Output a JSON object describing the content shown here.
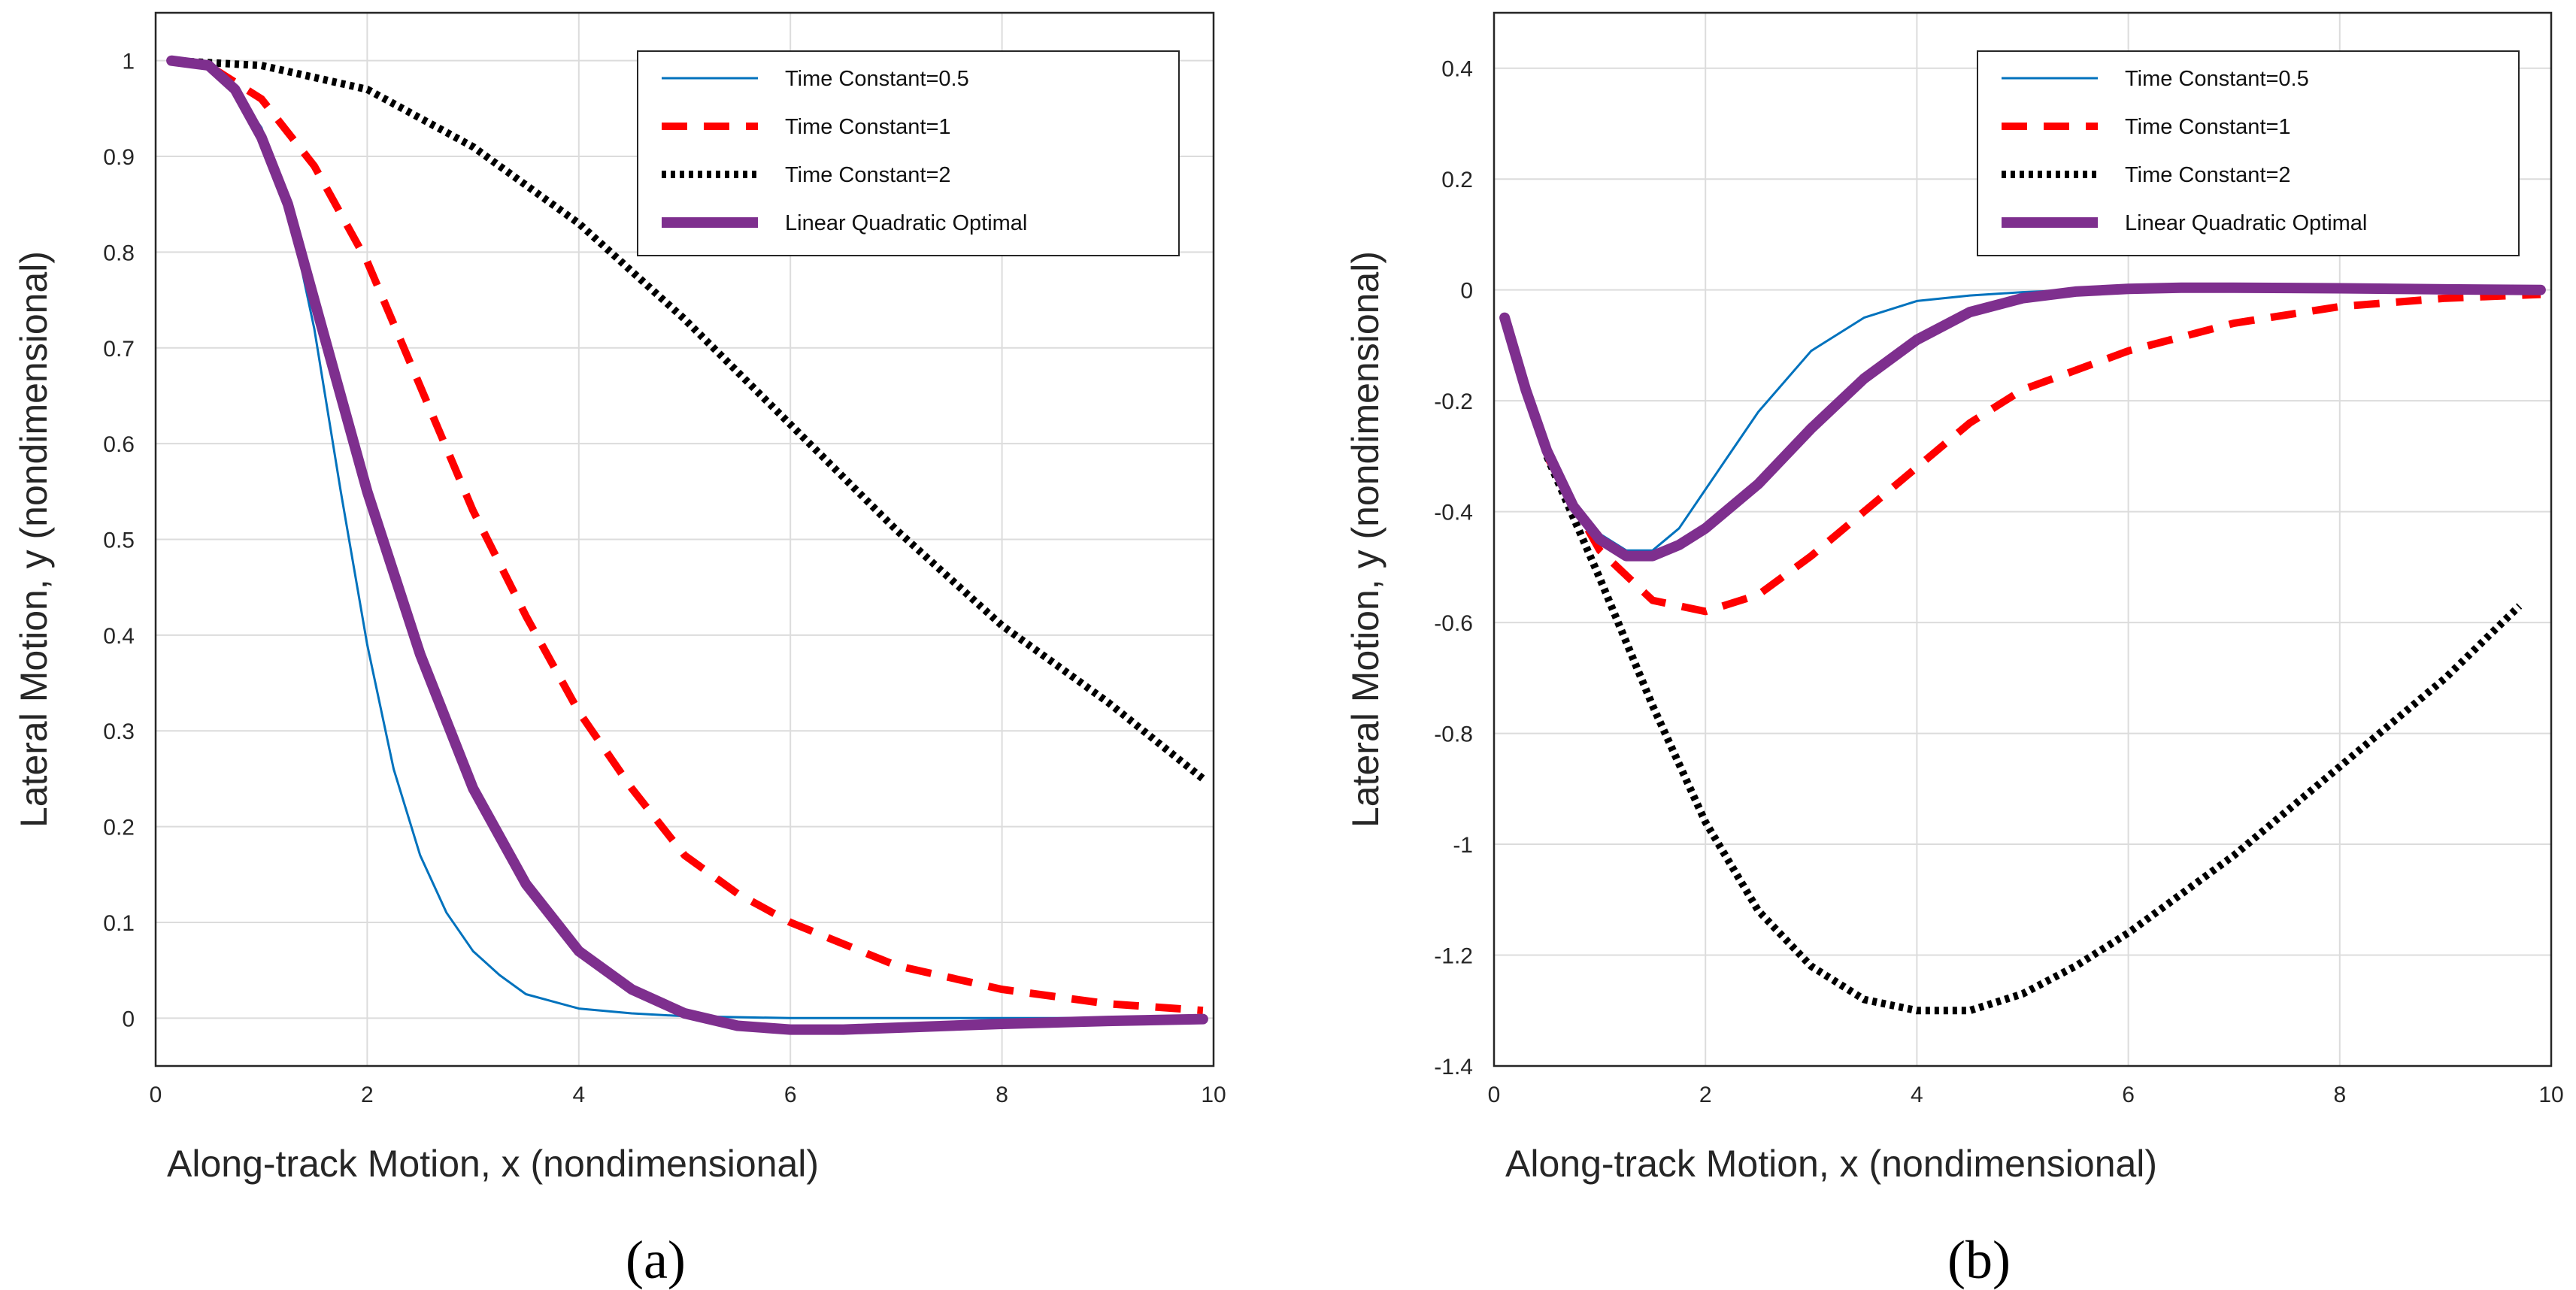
{
  "chart_data": [
    {
      "type": "line",
      "panel_label": "(a)",
      "xlabel": "Along-track Motion, x (nondimensional)",
      "ylabel": "Lateral Motion, y (nondimensional)",
      "xlim": [
        0,
        10
      ],
      "ylim": [
        -0.05,
        1.05
      ],
      "xticks": [
        "0",
        "2",
        "4",
        "6",
        "8",
        "10"
      ],
      "yticks": [
        "0",
        "0.1",
        "0.2",
        "0.3",
        "0.4",
        "0.5",
        "0.6",
        "0.7",
        "0.8",
        "0.9",
        "1"
      ],
      "grid": true,
      "legend_position": "top-right",
      "series": [
        {
          "name": "Time Constant=0.5",
          "color": "#0072BD",
          "style": "solid-thin",
          "x": [
            0.15,
            0.5,
            0.75,
            1.0,
            1.25,
            1.5,
            1.75,
            2.0,
            2.25,
            2.5,
            2.75,
            3.0,
            3.25,
            3.5,
            4.0,
            4.5,
            5.0,
            6.0,
            7.0,
            8.0,
            9.0,
            9.9
          ],
          "y": [
            1.0,
            0.995,
            0.97,
            0.93,
            0.85,
            0.72,
            0.55,
            0.39,
            0.26,
            0.17,
            0.11,
            0.07,
            0.045,
            0.025,
            0.01,
            0.005,
            0.002,
            0.0,
            0.0,
            0.0,
            0.0,
            0.0
          ]
        },
        {
          "name": "Time Constant=1",
          "color": "#FF0000",
          "style": "dashed",
          "x": [
            0.15,
            0.5,
            1.0,
            1.5,
            2.0,
            2.5,
            3.0,
            3.5,
            4.0,
            4.5,
            5.0,
            5.5,
            6.0,
            7.0,
            8.0,
            9.0,
            9.9
          ],
          "y": [
            1.0,
            0.995,
            0.96,
            0.89,
            0.79,
            0.66,
            0.53,
            0.42,
            0.32,
            0.24,
            0.17,
            0.13,
            0.1,
            0.055,
            0.03,
            0.015,
            0.008
          ]
        },
        {
          "name": "Time Constant=2",
          "color": "#000000",
          "style": "dotted",
          "x": [
            0.15,
            1.0,
            2.0,
            3.0,
            4.0,
            5.0,
            6.0,
            7.0,
            8.0,
            9.0,
            9.9
          ],
          "y": [
            1.0,
            0.995,
            0.97,
            0.91,
            0.83,
            0.73,
            0.62,
            0.51,
            0.41,
            0.33,
            0.25
          ]
        },
        {
          "name": "Linear Quadratic Optimal",
          "color": "#7E2F8E",
          "style": "solid-thick",
          "x": [
            0.15,
            0.5,
            0.75,
            1.0,
            1.25,
            1.5,
            1.75,
            2.0,
            2.5,
            3.0,
            3.5,
            4.0,
            4.5,
            5.0,
            5.5,
            6.0,
            6.5,
            7.0,
            8.0,
            9.0,
            9.9
          ],
          "y": [
            1.0,
            0.995,
            0.97,
            0.92,
            0.85,
            0.75,
            0.65,
            0.55,
            0.38,
            0.24,
            0.14,
            0.07,
            0.03,
            0.005,
            -0.008,
            -0.012,
            -0.012,
            -0.01,
            -0.006,
            -0.003,
            -0.001
          ]
        }
      ]
    },
    {
      "type": "line",
      "panel_label": "(b)",
      "xlabel": "Along-track Motion, x (nondimensional)",
      "ylabel": "Lateral Motion, y (nondimensional)",
      "xlim": [
        0,
        10
      ],
      "ylim": [
        -1.4,
        0.5
      ],
      "xticks": [
        "0",
        "2",
        "4",
        "6",
        "8",
        "10"
      ],
      "yticks": [
        "-1.4",
        "-1.2",
        "-1",
        "-0.8",
        "-0.6",
        "-0.4",
        "-0.2",
        "0",
        "0.2",
        "0.4"
      ],
      "grid": true,
      "legend_position": "top-right",
      "series": [
        {
          "name": "Time Constant=0.5",
          "color": "#0072BD",
          "style": "solid-thin",
          "x": [
            0.5,
            0.75,
            1.0,
            1.25,
            1.5,
            1.75,
            2.0,
            2.5,
            3.0,
            3.5,
            4.0,
            4.5,
            5.0,
            5.5,
            6.0,
            7.0,
            8.0,
            9.0,
            9.9
          ],
          "y": [
            -0.3,
            -0.38,
            -0.44,
            -0.47,
            -0.47,
            -0.43,
            -0.36,
            -0.22,
            -0.11,
            -0.05,
            -0.02,
            -0.01,
            -0.004,
            0.0,
            0.0,
            0.0,
            0.0,
            0.0,
            0.0
          ]
        },
        {
          "name": "Time Constant=1",
          "color": "#FF0000",
          "style": "dashed",
          "x": [
            0.5,
            1.0,
            1.5,
            2.0,
            2.5,
            3.0,
            3.5,
            4.0,
            4.5,
            5.0,
            6.0,
            7.0,
            8.0,
            9.0,
            9.9
          ],
          "y": [
            -0.3,
            -0.47,
            -0.56,
            -0.58,
            -0.55,
            -0.48,
            -0.4,
            -0.32,
            -0.24,
            -0.18,
            -0.11,
            -0.06,
            -0.03,
            -0.015,
            -0.008
          ]
        },
        {
          "name": "Time Constant=2",
          "color": "#000000",
          "style": "dotted",
          "x": [
            0.5,
            1.0,
            1.5,
            2.0,
            2.5,
            3.0,
            3.5,
            4.0,
            4.5,
            5.0,
            5.5,
            6.0,
            6.5,
            7.0,
            7.5,
            8.0,
            8.5,
            9.0,
            9.7
          ],
          "y": [
            -0.3,
            -0.52,
            -0.75,
            -0.96,
            -1.12,
            -1.22,
            -1.28,
            -1.3,
            -1.3,
            -1.27,
            -1.22,
            -1.16,
            -1.09,
            -1.02,
            -0.94,
            -0.86,
            -0.78,
            -0.7,
            -0.57
          ]
        },
        {
          "name": "Linear Quadratic Optimal",
          "color": "#7E2F8E",
          "style": "solid-thick",
          "x": [
            0.1,
            0.3,
            0.5,
            0.75,
            1.0,
            1.25,
            1.5,
            1.75,
            2.0,
            2.5,
            3.0,
            3.5,
            4.0,
            4.5,
            5.0,
            5.5,
            6.0,
            6.5,
            7.0,
            8.0,
            9.0,
            9.9
          ],
          "y": [
            -0.05,
            -0.18,
            -0.29,
            -0.39,
            -0.45,
            -0.48,
            -0.48,
            -0.46,
            -0.43,
            -0.35,
            -0.25,
            -0.16,
            -0.09,
            -0.04,
            -0.015,
            -0.003,
            0.002,
            0.004,
            0.004,
            0.003,
            0.001,
            0.0
          ]
        }
      ]
    }
  ]
}
